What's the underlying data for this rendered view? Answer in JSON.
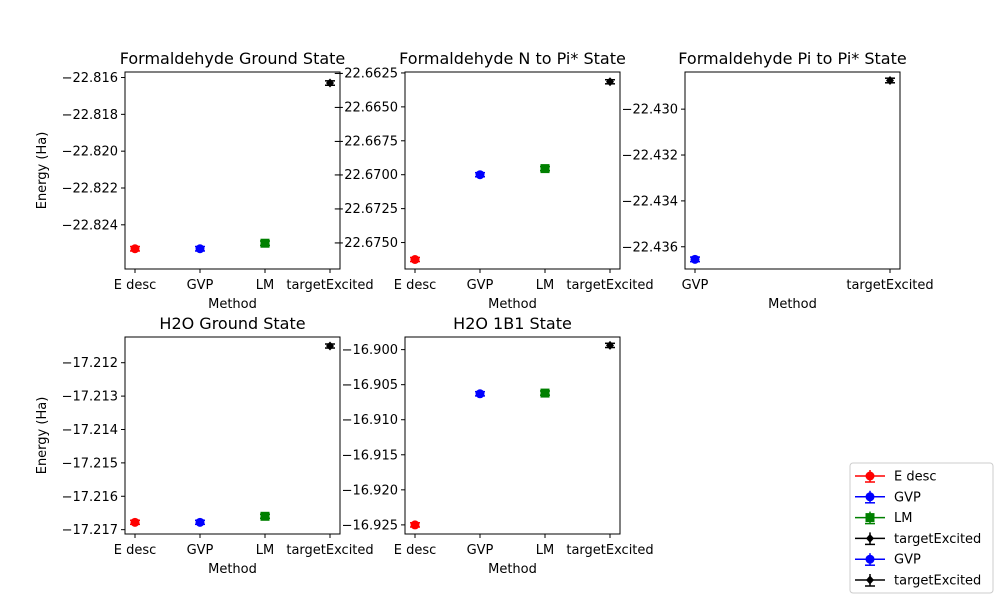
{
  "colors": {
    "E desc": "#ff0000",
    "GVP": "#0000ff",
    "LM": "#008000",
    "targetExcited": "#000000"
  },
  "chart_data": [
    {
      "type": "scatter",
      "title": "Formaldehyde Ground State",
      "xlabel": "Method",
      "ylabel": "Energy (Ha)",
      "categories": [
        "E desc",
        "GVP",
        "LM",
        "targetExcited"
      ],
      "ylim": [
        -22.8264,
        -22.8157
      ],
      "yticks": [
        -22.824,
        -22.822,
        -22.82,
        -22.818,
        -22.816
      ],
      "tick_labels": [
        "−22.824",
        "−22.822",
        "−22.820",
        "−22.818",
        "−22.816"
      ],
      "points": [
        {
          "method": "E desc",
          "y": -22.8253,
          "err": 0.00012,
          "marker": "circle"
        },
        {
          "method": "GVP",
          "y": -22.8253,
          "err": 0.00012,
          "marker": "circle"
        },
        {
          "method": "LM",
          "y": -22.825,
          "err": 0.00012,
          "marker": "square"
        },
        {
          "method": "targetExcited",
          "y": -22.8163,
          "err": 0.00012,
          "marker": "diamond"
        }
      ]
    },
    {
      "type": "scatter",
      "title": "Formaldehyde N to Pi* State",
      "xlabel": "Method",
      "ylabel": "",
      "categories": [
        "E desc",
        "GVP",
        "LM",
        "targetExcited"
      ],
      "ylim": [
        -22.67695,
        -22.66243
      ],
      "yticks": [
        -22.675,
        -22.6725,
        -22.67,
        -22.6675,
        -22.665,
        -22.6625
      ],
      "tick_labels": [
        "−22.6750",
        "−22.6725",
        "−22.6700",
        "−22.6675",
        "−22.6650",
        "−22.6625"
      ],
      "points": [
        {
          "method": "E desc",
          "y": -22.67625,
          "err": 0.00015,
          "marker": "circle"
        },
        {
          "method": "GVP",
          "y": -22.67,
          "err": 0.00015,
          "marker": "circle"
        },
        {
          "method": "LM",
          "y": -22.66955,
          "err": 0.00015,
          "marker": "square"
        },
        {
          "method": "targetExcited",
          "y": -22.66315,
          "err": 0.00015,
          "marker": "diamond"
        }
      ]
    },
    {
      "type": "scatter",
      "title": "Formaldehyde Pi to Pi* State",
      "xlabel": "Method",
      "ylabel": "",
      "categories": [
        "GVP",
        "targetExcited"
      ],
      "ylim": [
        -22.43697,
        -22.42838
      ],
      "yticks": [
        -22.436,
        -22.434,
        -22.432,
        -22.43
      ],
      "tick_labels": [
        "−22.436",
        "−22.434",
        "−22.432",
        "−22.430"
      ],
      "points": [
        {
          "method": "GVP",
          "y": -22.43655,
          "err": 0.0001,
          "marker": "circle"
        },
        {
          "method": "targetExcited",
          "y": -22.42875,
          "err": 0.0001,
          "marker": "diamond"
        }
      ]
    },
    {
      "type": "scatter",
      "title": "H2O Ground State",
      "xlabel": "Method",
      "ylabel": "Energy (Ha)",
      "categories": [
        "E desc",
        "GVP",
        "LM",
        "targetExcited"
      ],
      "ylim": [
        -17.21713,
        -17.21123
      ],
      "yticks": [
        -17.217,
        -17.216,
        -17.215,
        -17.214,
        -17.213,
        -17.212
      ],
      "tick_labels": [
        "−17.217",
        "−17.216",
        "−17.215",
        "−17.214",
        "−17.213",
        "−17.212"
      ],
      "points": [
        {
          "method": "E desc",
          "y": -17.21678,
          "err": 6e-05,
          "marker": "circle"
        },
        {
          "method": "GVP",
          "y": -17.21678,
          "err": 6e-05,
          "marker": "circle"
        },
        {
          "method": "LM",
          "y": -17.2166,
          "err": 6e-05,
          "marker": "square"
        },
        {
          "method": "targetExcited",
          "y": -17.2115,
          "err": 6e-05,
          "marker": "diamond"
        }
      ]
    },
    {
      "type": "scatter",
      "title": "H2O 1B1 State",
      "xlabel": "Method",
      "ylabel": "",
      "categories": [
        "E desc",
        "GVP",
        "LM",
        "targetExcited"
      ],
      "ylim": [
        -16.9263,
        -16.8982
      ],
      "yticks": [
        -16.925,
        -16.92,
        -16.915,
        -16.91,
        -16.905,
        -16.9
      ],
      "tick_labels": [
        "−16.925",
        "−16.920",
        "−16.915",
        "−16.910",
        "−16.905",
        "−16.900"
      ],
      "points": [
        {
          "method": "E desc",
          "y": -16.925,
          "err": 0.0003,
          "marker": "circle"
        },
        {
          "method": "GVP",
          "y": -16.9063,
          "err": 0.0003,
          "marker": "circle"
        },
        {
          "method": "LM",
          "y": -16.9062,
          "err": 0.0003,
          "marker": "square"
        },
        {
          "method": "targetExcited",
          "y": -16.8994,
          "err": 0.0003,
          "marker": "diamond"
        }
      ]
    }
  ],
  "legend": {
    "placement": "bottom-right",
    "entries": [
      {
        "label": "E desc",
        "marker": "circle"
      },
      {
        "label": "GVP",
        "marker": "circle"
      },
      {
        "label": "LM",
        "marker": "square"
      },
      {
        "label": "targetExcited",
        "marker": "diamond"
      },
      {
        "label": "GVP",
        "marker": "circle"
      },
      {
        "label": "targetExcited",
        "marker": "diamond"
      }
    ]
  }
}
